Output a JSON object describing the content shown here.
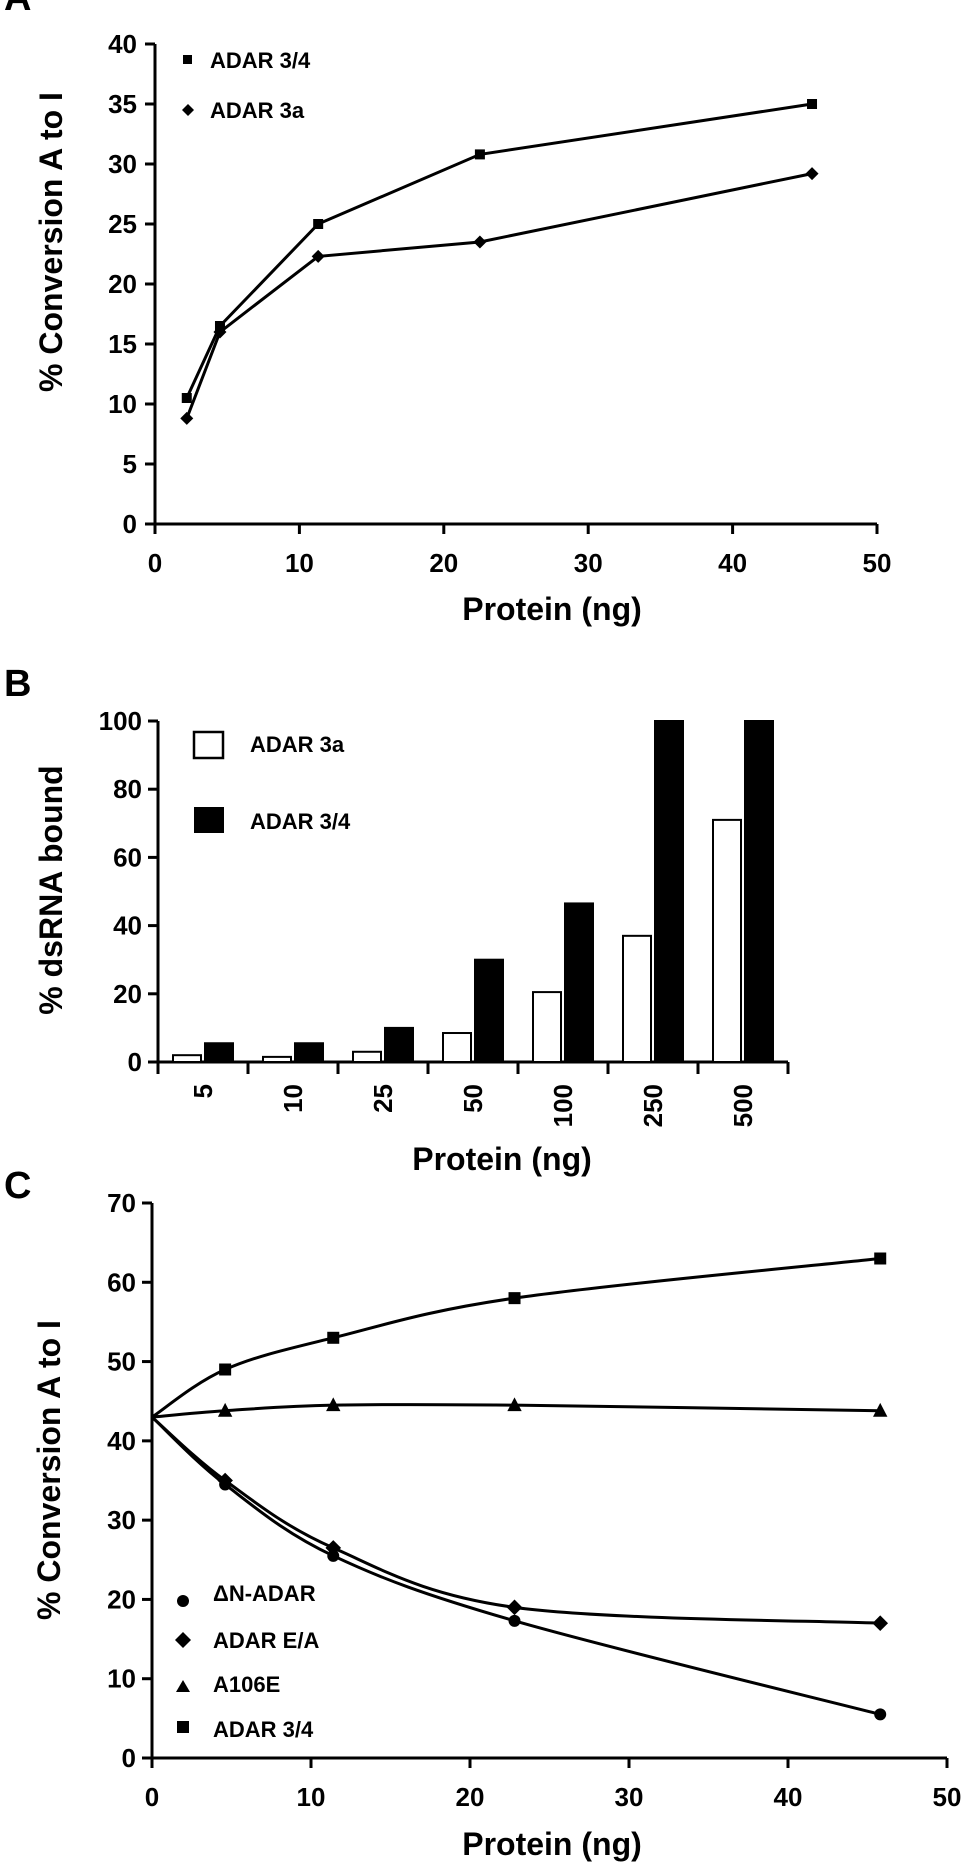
{
  "figure": {
    "panel_labels": [
      "A",
      "B",
      "C"
    ]
  },
  "chart_data": [
    {
      "type": "line",
      "panel": "A",
      "xlabel": "Protein (ng)",
      "ylabel": "% Conversion A to I",
      "xlim": [
        0,
        50
      ],
      "ylim": [
        0,
        40
      ],
      "xticks": [
        0,
        10,
        20,
        30,
        40,
        50
      ],
      "yticks": [
        0,
        5,
        10,
        15,
        20,
        25,
        30,
        35,
        40
      ],
      "legend_position": "top-left",
      "grid": false,
      "series": [
        {
          "name": "ADAR 3/4",
          "marker": "square",
          "x": [
            2.2,
            4.5,
            11.3,
            22.5,
            45.5
          ],
          "y": [
            10.5,
            16.5,
            25,
            30.8,
            35
          ]
        },
        {
          "name": "ADAR 3a",
          "marker": "diamond",
          "x": [
            2.2,
            4.5,
            11.3,
            22.5,
            45.5
          ],
          "y": [
            8.8,
            16,
            22.3,
            23.5,
            29.2
          ]
        }
      ]
    },
    {
      "type": "bar",
      "panel": "B",
      "xlabel": "Protein (ng)",
      "ylabel": "% dsRNA bound",
      "ylim": [
        0,
        100
      ],
      "yticks": [
        0,
        20,
        40,
        60,
        80,
        100
      ],
      "categories": [
        "5",
        "10",
        "25",
        "50",
        "100",
        "250",
        "500"
      ],
      "legend_position": "top-left",
      "grid": false,
      "series": [
        {
          "name": "ADAR 3a",
          "fill": "#ffffff",
          "values": [
            2,
            1.5,
            3,
            8.5,
            20.5,
            37,
            71
          ]
        },
        {
          "name": "ADAR 3/4",
          "fill": "#000000",
          "values": [
            5.5,
            5.5,
            10,
            30,
            46.5,
            100,
            100
          ]
        }
      ]
    },
    {
      "type": "line",
      "panel": "C",
      "xlabel": "Protein (ng)",
      "ylabel": "% Conversion A to I",
      "xlim": [
        0,
        50
      ],
      "ylim": [
        0,
        70
      ],
      "xticks": [
        0,
        10,
        20,
        30,
        40,
        50
      ],
      "yticks": [
        0,
        10,
        20,
        30,
        40,
        50,
        60,
        70
      ],
      "legend_position": "bottom-left",
      "grid": false,
      "series": [
        {
          "name": "ΔN-ADAR",
          "marker": "circle",
          "x": [
            0,
            4.6,
            11.4,
            22.8,
            45.8
          ],
          "y": [
            43,
            34.5,
            25.5,
            17.3,
            5.5
          ]
        },
        {
          "name": "ADAR E/A",
          "marker": "diamond",
          "x": [
            0,
            4.6,
            11.4,
            22.8,
            45.8
          ],
          "y": [
            43,
            35,
            26.5,
            19,
            17
          ]
        },
        {
          "name": "A106E",
          "marker": "triangle",
          "x": [
            0,
            4.6,
            11.4,
            22.8,
            45.8
          ],
          "y": [
            43,
            43.8,
            44.5,
            44.5,
            43.8
          ]
        },
        {
          "name": "ADAR 3/4",
          "marker": "square",
          "x": [
            0,
            4.6,
            11.4,
            22.8,
            45.8
          ],
          "y": [
            43,
            49,
            53,
            58,
            63
          ]
        }
      ]
    }
  ]
}
